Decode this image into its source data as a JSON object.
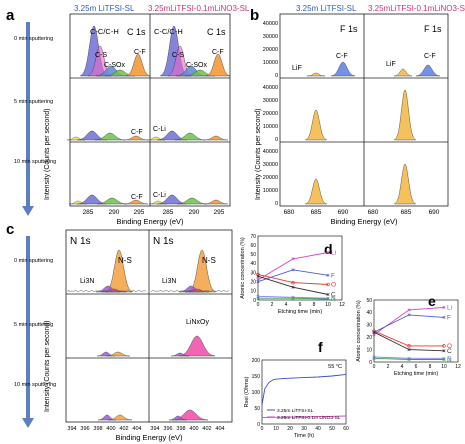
{
  "colors": {
    "blue_title": "#2f5fb3",
    "pink_title": "#d0307a",
    "arrow": "#5b7fc0",
    "c_cc": "#6f6fd6",
    "c_cs": "#5a8ad6",
    "c_csox": "#6cc24a",
    "c_cf": "#f2942e",
    "c_cli": "#f4e04a",
    "c_pink": "#e868c8",
    "f_lif": "#f2b640",
    "f_cf": "#5b7ee0",
    "n_n": "#f2a040",
    "n_li3n": "#9a5ad6",
    "n_linox": "#f04aa8",
    "li": "#d63ec0",
    "f": "#4a5ec8",
    "o": "#e03a3a",
    "c": "#303030",
    "n": "#3aa050",
    "s": "#8080ff"
  },
  "panel_a": {
    "letter": "a",
    "col_left_title": "3.25m LiTFSI-SL",
    "col_right_title": "3.25mLiTFSI-0.1mLiNO3-SL",
    "element_label": "C 1s",
    "labels": {
      "cc": "C-C/C-H",
      "cs": "C-S",
      "csox": "C-SOx",
      "cf": "C-F",
      "cli": "C-Li"
    },
    "ylabel": "Intensity (Counts per second)",
    "xlabel": "Binding Energy (eV)",
    "xticks": [
      "285",
      "290",
      "295"
    ],
    "rows": [
      {
        "sputter": "0 min sputtering"
      },
      {
        "sputter": "5 min sputtering"
      },
      {
        "sputter": "10 min sputtering"
      }
    ]
  },
  "panel_b": {
    "letter": "b",
    "col_left_title": "3.25m LiTFSI-SL",
    "col_right_title": "3.25mLiTFSI-0.1mLiNO3-SL",
    "element_label": "F 1s",
    "labels": {
      "lif": "LiF",
      "cf": "C-F"
    },
    "ylabel": "Intensity (Counts per second)",
    "xlabel": "Binding Energy (eV)",
    "xticks": [
      "680",
      "685",
      "690"
    ],
    "yticks": [
      "0",
      "10000",
      "20000",
      "30000",
      "40000"
    ]
  },
  "panel_c": {
    "letter": "c",
    "element_label": "N 1s",
    "labels": {
      "ns": "N-S",
      "li3n": "Li3N",
      "linox": "LiNxOy"
    },
    "ylabel": "Intensity (Counts per second)",
    "xlabel": "Binding Energy (eV)",
    "xticks": [
      "394",
      "396",
      "398",
      "400",
      "402",
      "404"
    ],
    "rows": [
      {
        "sputter": "0 min sputtering"
      },
      {
        "sputter": "5 min sputtering"
      },
      {
        "sputter": "10 min sputtering"
      }
    ]
  },
  "chart_data": [
    {
      "id": "d",
      "type": "line",
      "title": "d",
      "xlabel": "Etching time (min)",
      "ylabel": "Atomic concentration (%)",
      "xlim": [
        0,
        12
      ],
      "ylim": [
        0,
        70
      ],
      "xticks": [
        "0",
        "2",
        "4",
        "6",
        "8",
        "10",
        "12"
      ],
      "yticks": [
        "0",
        "10",
        "20",
        "30",
        "40",
        "50",
        "60",
        "70"
      ],
      "x": [
        0,
        5,
        10
      ],
      "series": [
        {
          "name": "Li",
          "values": [
            22,
            45,
            52
          ]
        },
        {
          "name": "F",
          "values": [
            20,
            33,
            27
          ]
        },
        {
          "name": "O",
          "values": [
            28,
            19,
            17
          ]
        },
        {
          "name": "C",
          "values": [
            26,
            14,
            6
          ]
        },
        {
          "name": "S",
          "values": [
            4,
            3,
            2
          ]
        },
        {
          "name": "N",
          "values": [
            2,
            2,
            1
          ]
        }
      ]
    },
    {
      "id": "e",
      "type": "line",
      "title": "e",
      "xlabel": "Etching time (min)",
      "ylabel": "Atomic concentration (%)",
      "xlim": [
        0,
        12
      ],
      "ylim": [
        0,
        50
      ],
      "xticks": [
        "0",
        "2",
        "4",
        "6",
        "8",
        "10",
        "12"
      ],
      "yticks": [
        "0",
        "10",
        "20",
        "30",
        "40",
        "50"
      ],
      "x": [
        0,
        5,
        10
      ],
      "series": [
        {
          "name": "Li",
          "values": [
            22,
            42,
            44
          ]
        },
        {
          "name": "F",
          "values": [
            24,
            38,
            36
          ]
        },
        {
          "name": "O",
          "values": [
            25,
            13,
            13
          ]
        },
        {
          "name": "C",
          "values": [
            24,
            10,
            9
          ]
        },
        {
          "name": "S",
          "values": [
            4,
            3,
            3
          ]
        },
        {
          "name": "N",
          "values": [
            3,
            2,
            2
          ]
        }
      ]
    },
    {
      "id": "f",
      "type": "line",
      "title": "f",
      "xlabel": "Time (h)",
      "ylabel": "Rsei (Ohms)",
      "xlim": [
        0,
        60
      ],
      "ylim": [
        0,
        200
      ],
      "xticks": [
        "0",
        "10",
        "20",
        "30",
        "40",
        "50",
        "60"
      ],
      "yticks": [
        "0",
        "50",
        "100",
        "150",
        "200"
      ],
      "annotation": "55 °C",
      "series": [
        {
          "name": "3.25m LiTFSI-SL",
          "color": "#3a4fc8",
          "x": [
            0,
            2,
            5,
            8,
            10,
            15,
            20,
            30,
            40,
            50,
            60
          ],
          "values": [
            60,
            110,
            130,
            138,
            140,
            142,
            143,
            145,
            147,
            150,
            155
          ]
        },
        {
          "name": "3.25m LiTFSI-0.1m LiNO3-SL",
          "color": "#e040c0",
          "x": [
            0,
            10,
            20,
            30,
            40,
            50,
            60
          ],
          "values": [
            20,
            21,
            22,
            22,
            23,
            24,
            25
          ]
        }
      ]
    }
  ]
}
